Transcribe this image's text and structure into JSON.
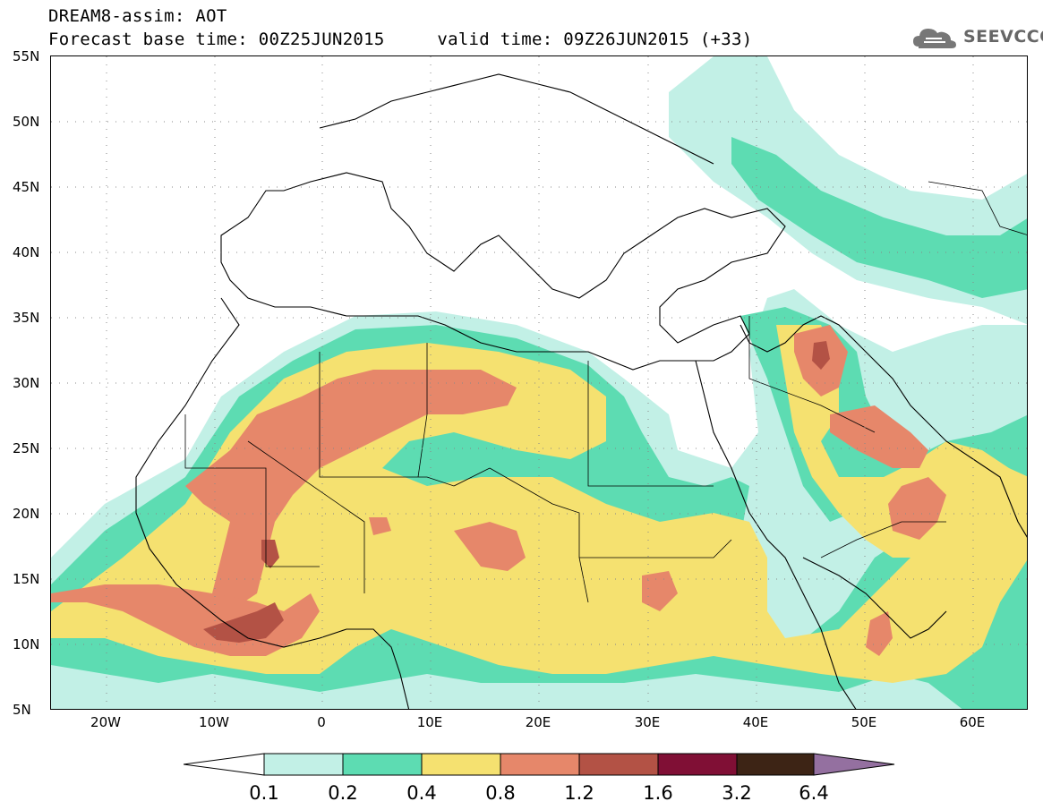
{
  "title": {
    "line1": "DREAM8-assim: AOT",
    "line2": "Forecast base time: 00Z25JUN2015     valid time: 09Z26JUN2015 (+33)"
  },
  "logo": {
    "text": "SEEVCCC",
    "icon": "cloud-icon"
  },
  "map": {
    "lon_range": [
      -25,
      65
    ],
    "lat_range": [
      5,
      55
    ],
    "lat_labels": [
      "55N",
      "50N",
      "45N",
      "40N",
      "35N",
      "30N",
      "25N",
      "20N",
      "15N",
      "10N",
      "5N"
    ],
    "lon_labels": [
      "20W",
      "10W",
      "0",
      "10E",
      "20E",
      "30E",
      "40E",
      "50E",
      "60E"
    ]
  },
  "colorbar": {
    "colors": [
      "#ffffff",
      "#c2f0e6",
      "#5ddcb2",
      "#f5e170",
      "#e6876a",
      "#b35245",
      "#800f35",
      "#3d2415",
      "#9470a0"
    ],
    "labels": [
      "0.1",
      "0.2",
      "0.4",
      "0.8",
      "1.2",
      "1.6",
      "3.2",
      "6.4"
    ]
  }
}
